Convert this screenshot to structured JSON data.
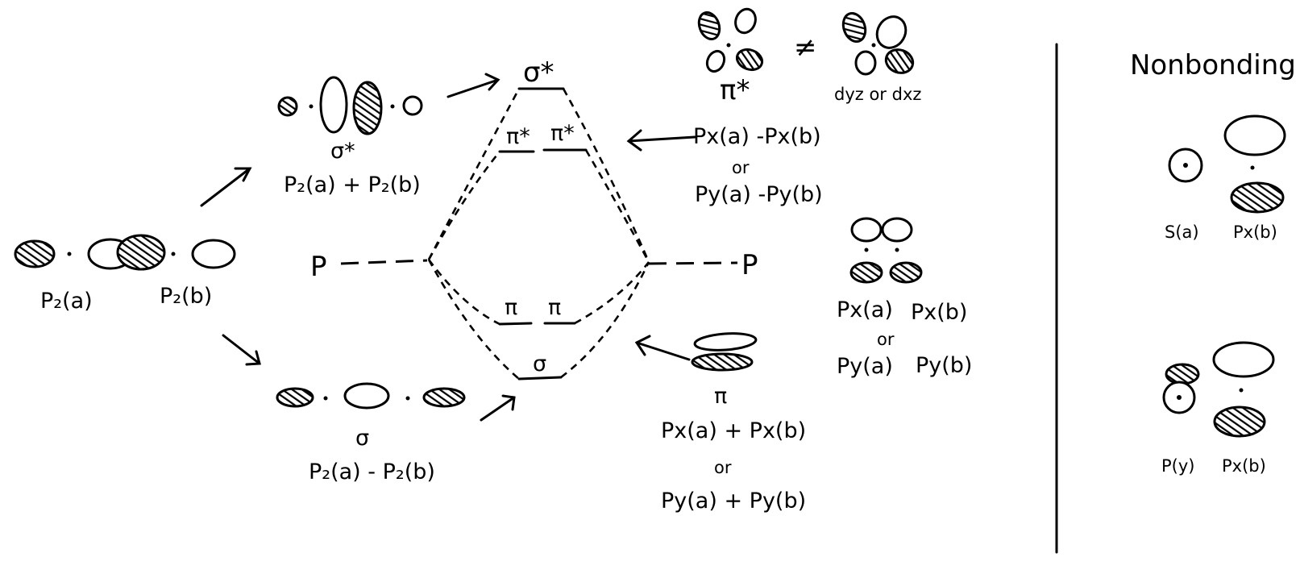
{
  "orbitals": {
    "pz_a": "P₂(a)",
    "pz_b": "P₂(b)",
    "sigma_star_label": "σ*",
    "sigma_star_combo": "P₂(a) + P₂(b)",
    "sigma_label": "σ",
    "sigma_combo": "P₂(a) - P₂(b)"
  },
  "mo_diagram": {
    "left_p": "P",
    "right_p": "P",
    "sigma_star_level": "σ*",
    "pi_star_levels": [
      "π*",
      "π*"
    ],
    "pi_levels": [
      "π",
      "π"
    ],
    "sigma_level": "σ"
  },
  "pi_star_side": {
    "label": "π*",
    "not_equal": "≠",
    "d_label": "dyz or dxz",
    "combo_line1": "Px(a) -Px(b)",
    "or": "or",
    "combo_line2": "Py(a) -Py(b)"
  },
  "p_pair": {
    "px_a": "Px(a)",
    "px_b": "Px(b)",
    "or": "or",
    "py_a": "Py(a)",
    "py_b": "Py(b)"
  },
  "pi_side": {
    "label": "π",
    "combo_line1": "Px(a) + Px(b)",
    "or": "or",
    "combo_line2": "Py(a) + Py(b)"
  },
  "nonbonding": {
    "title": "Nonbonding",
    "s_a": "S(a)",
    "px_b_top": "Px(b)",
    "p_y": "P(y)",
    "px_b_bottom": "Px(b)"
  }
}
